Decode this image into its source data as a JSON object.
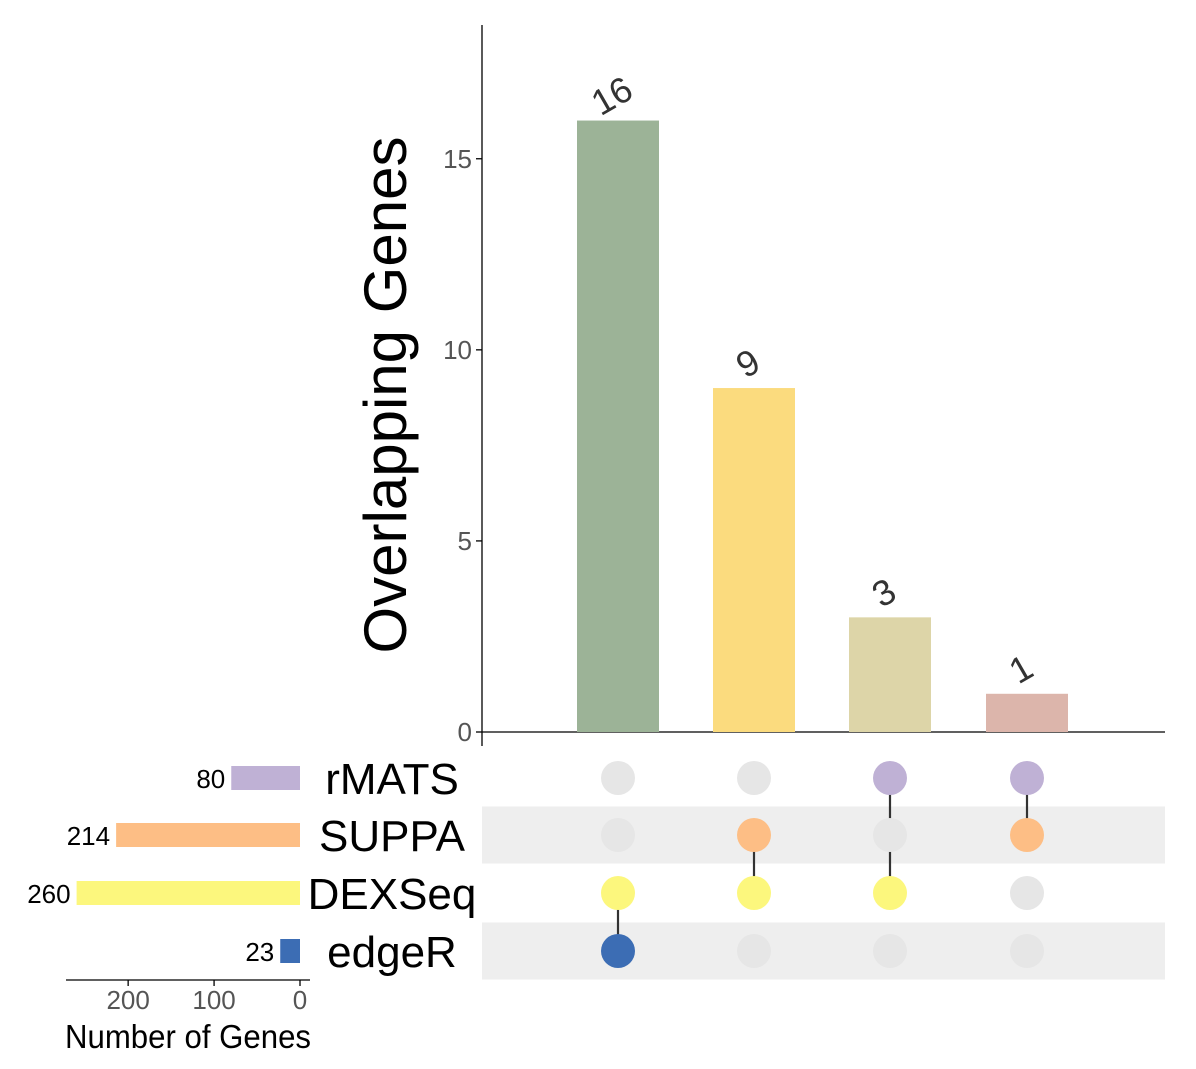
{
  "chart_data": {
    "type": "upset",
    "ylabel": "Overlapping Genes",
    "xlabel_sets": "Number of Genes",
    "ylim": [
      0,
      18.5
    ],
    "yticks": [
      0,
      5,
      10,
      15
    ],
    "sets": [
      {
        "name": "rMATS",
        "size": 80,
        "color": "#BFB1D5"
      },
      {
        "name": "SUPPA",
        "size": 214,
        "color": "#FDBE85"
      },
      {
        "name": "DEXSeq",
        "size": 260,
        "color": "#FCF77D"
      },
      {
        "name": "edgeR",
        "size": 23,
        "color": "#3C6DB4"
      }
    ],
    "set_size_ticks": [
      200,
      100,
      0
    ],
    "set_size_max": 270,
    "intersections": [
      {
        "members": [
          "DEXSeq",
          "edgeR"
        ],
        "value": 16,
        "color": "#9CB397"
      },
      {
        "members": [
          "SUPPA",
          "DEXSeq"
        ],
        "value": 9,
        "color": "#FBDB7E"
      },
      {
        "members": [
          "rMATS",
          "DEXSeq"
        ],
        "value": 3,
        "color": "#DDD5A8"
      },
      {
        "members": [
          "rMATS",
          "SUPPA"
        ],
        "value": 1,
        "color": "#DCB5AB"
      }
    ],
    "inactive_dot_color": "#E6E6E6",
    "stripe_color": "#EEEEEE",
    "grid": false
  }
}
